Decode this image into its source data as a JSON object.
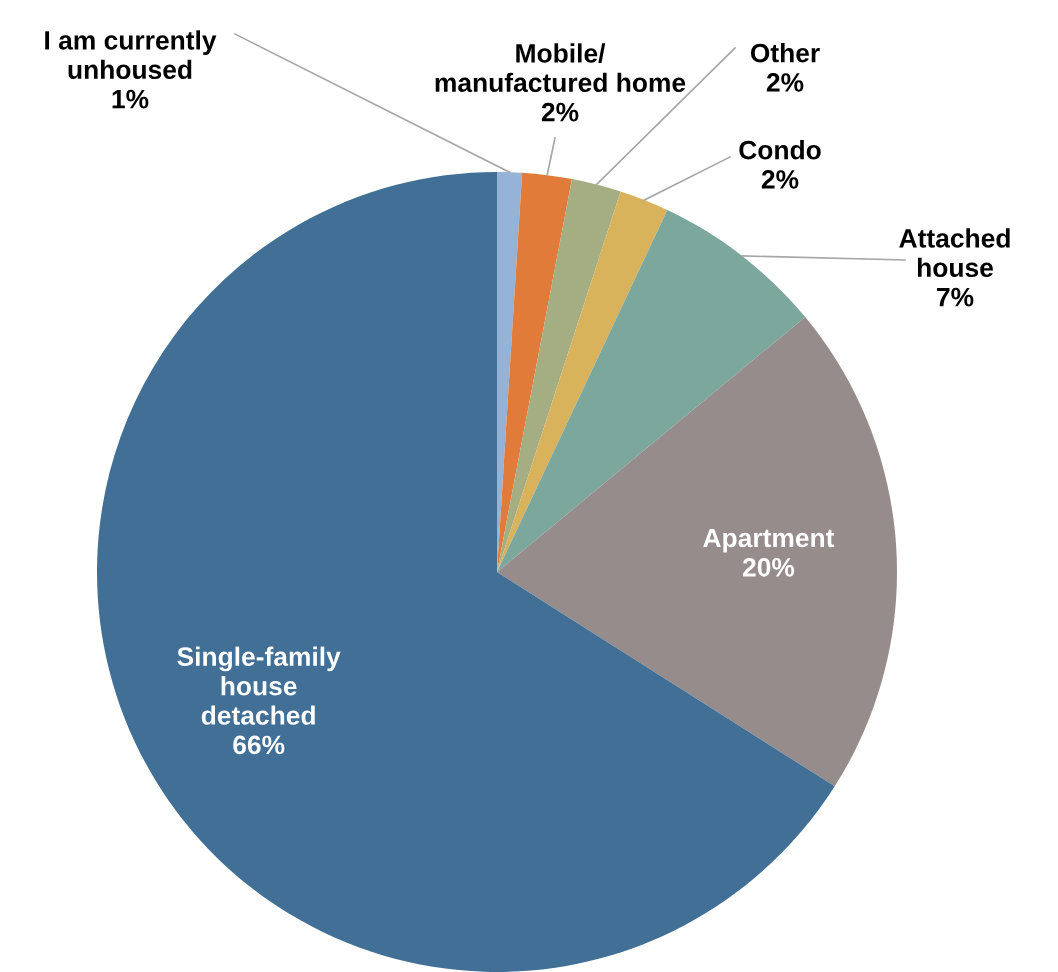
{
  "chart_data": {
    "type": "pie",
    "categories": [
      "I am currently\nunhoused",
      "Mobile/\nmanufactured home",
      "Other",
      "Condo",
      "Attached\nhouse",
      "Apartment",
      "Single-family\nhouse\ndetached"
    ],
    "values": [
      1,
      2,
      2,
      2,
      7,
      20,
      66
    ],
    "colors": [
      "#95b3d7",
      "#e07b39",
      "#a5ad82",
      "#d9b25c",
      "#7ba79d",
      "#968c8b",
      "#416f96"
    ],
    "value_labels": [
      "1%",
      "2%",
      "2%",
      "2%",
      "7%",
      "20%",
      "66%"
    ]
  }
}
